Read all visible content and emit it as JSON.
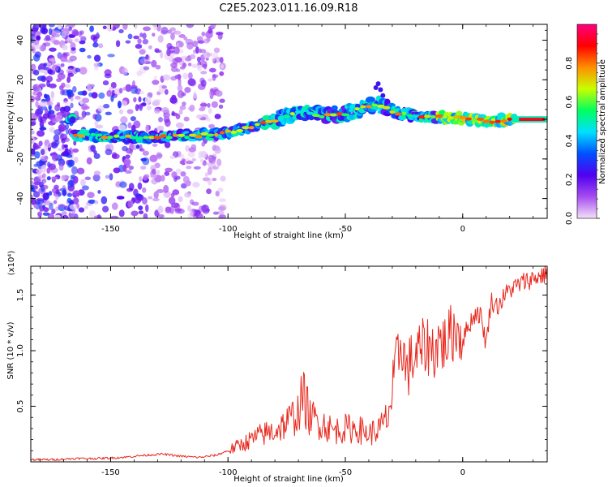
{
  "title": "C2E5.2023.011.16.09.R18",
  "chart_data": [
    {
      "type": "heatmap",
      "xlabel": "Height of straight line (km)",
      "ylabel": "Frequency (Hz)",
      "xlim": [
        -184,
        36
      ],
      "ylim": [
        -50,
        48
      ],
      "xticks": [
        -150,
        -100,
        -50,
        0
      ],
      "xtick_labels": [
        "-150",
        "-100",
        "-50",
        "0"
      ],
      "yticks": [
        -40,
        -20,
        0,
        20,
        40
      ],
      "ytick_labels": [
        "-40",
        "-20",
        "0",
        "20",
        "40"
      ],
      "colorbar": {
        "label": "Normalized spectral amplitude",
        "range": [
          0,
          1
        ],
        "ticks": [
          0.0,
          0.2,
          0.4,
          0.6,
          0.8
        ],
        "tick_labels": [
          "0.0",
          "0.2",
          "0.4",
          "0.6",
          "0.8"
        ],
        "colormap": [
          "#f3e1f8",
          "#a64df0",
          "#5000f0",
          "#0050ff",
          "#00e0ff",
          "#00ff60",
          "#c8ff00",
          "#ff9000",
          "#ff0000",
          "#ff0080"
        ]
      },
      "ridge": [
        [
          -166,
          -8
        ],
        [
          -150,
          -8.5
        ],
        [
          -135,
          -9
        ],
        [
          -120,
          -8.5
        ],
        [
          -105,
          -7.5
        ],
        [
          -95,
          -5.5
        ],
        [
          -85,
          -2
        ],
        [
          -75,
          1.5
        ],
        [
          -68,
          4
        ],
        [
          -60,
          2
        ],
        [
          -50,
          3
        ],
        [
          -42,
          6
        ],
        [
          -36,
          8
        ],
        [
          -30,
          4
        ],
        [
          -22,
          2
        ],
        [
          -10,
          1
        ],
        [
          0,
          0.5
        ],
        [
          10,
          -1
        ],
        [
          20,
          0
        ],
        [
          35,
          0
        ]
      ],
      "grid": false
    },
    {
      "type": "line",
      "xlabel": "Height of straight line (km)",
      "ylabel": "SNR (10 * v/v)",
      "y_exponent": "(x10⁴)",
      "xlim": [
        -184,
        36
      ],
      "ylim": [
        0,
        1.76
      ],
      "xticks": [
        -150,
        -100,
        -50,
        0
      ],
      "xtick_labels": [
        "-150",
        "-100",
        "-50",
        "0"
      ],
      "yticks": [
        0.5,
        1.0,
        1.5
      ],
      "ytick_labels": [
        "0.5",
        "1.0",
        "1.5"
      ],
      "line_color": "#e8281e",
      "series": [
        {
          "x": [
            -184,
            -175,
            -165,
            -155,
            -145,
            -135,
            -128,
            -120,
            -112,
            -105,
            -100,
            -95,
            -90,
            -85,
            -80,
            -75,
            -70,
            -68,
            -65,
            -60,
            -55,
            -50,
            -45,
            -40,
            -35,
            -32,
            -30,
            -28,
            -26,
            -24,
            -22,
            -20,
            -18,
            -15,
            -12,
            -10,
            -8,
            -5,
            -2,
            0,
            3,
            6,
            8,
            10,
            12,
            15,
            18,
            20,
            23,
            26,
            30,
            33,
            36
          ],
          "y": [
            0.02,
            0.02,
            0.03,
            0.03,
            0.04,
            0.06,
            0.07,
            0.05,
            0.04,
            0.06,
            0.1,
            0.15,
            0.2,
            0.25,
            0.28,
            0.35,
            0.45,
            0.6,
            0.4,
            0.35,
            0.28,
            0.3,
            0.3,
            0.25,
            0.3,
            0.4,
            0.6,
            0.9,
            1.1,
            0.8,
            0.9,
            0.95,
            1.0,
            1.05,
            1.0,
            1.1,
            1.05,
            1.15,
            1.2,
            1.1,
            1.25,
            1.35,
            1.3,
            1.05,
            1.45,
            1.4,
            1.5,
            1.55,
            1.58,
            1.62,
            1.65,
            1.67,
            1.7
          ]
        }
      ],
      "grid": false
    }
  ]
}
